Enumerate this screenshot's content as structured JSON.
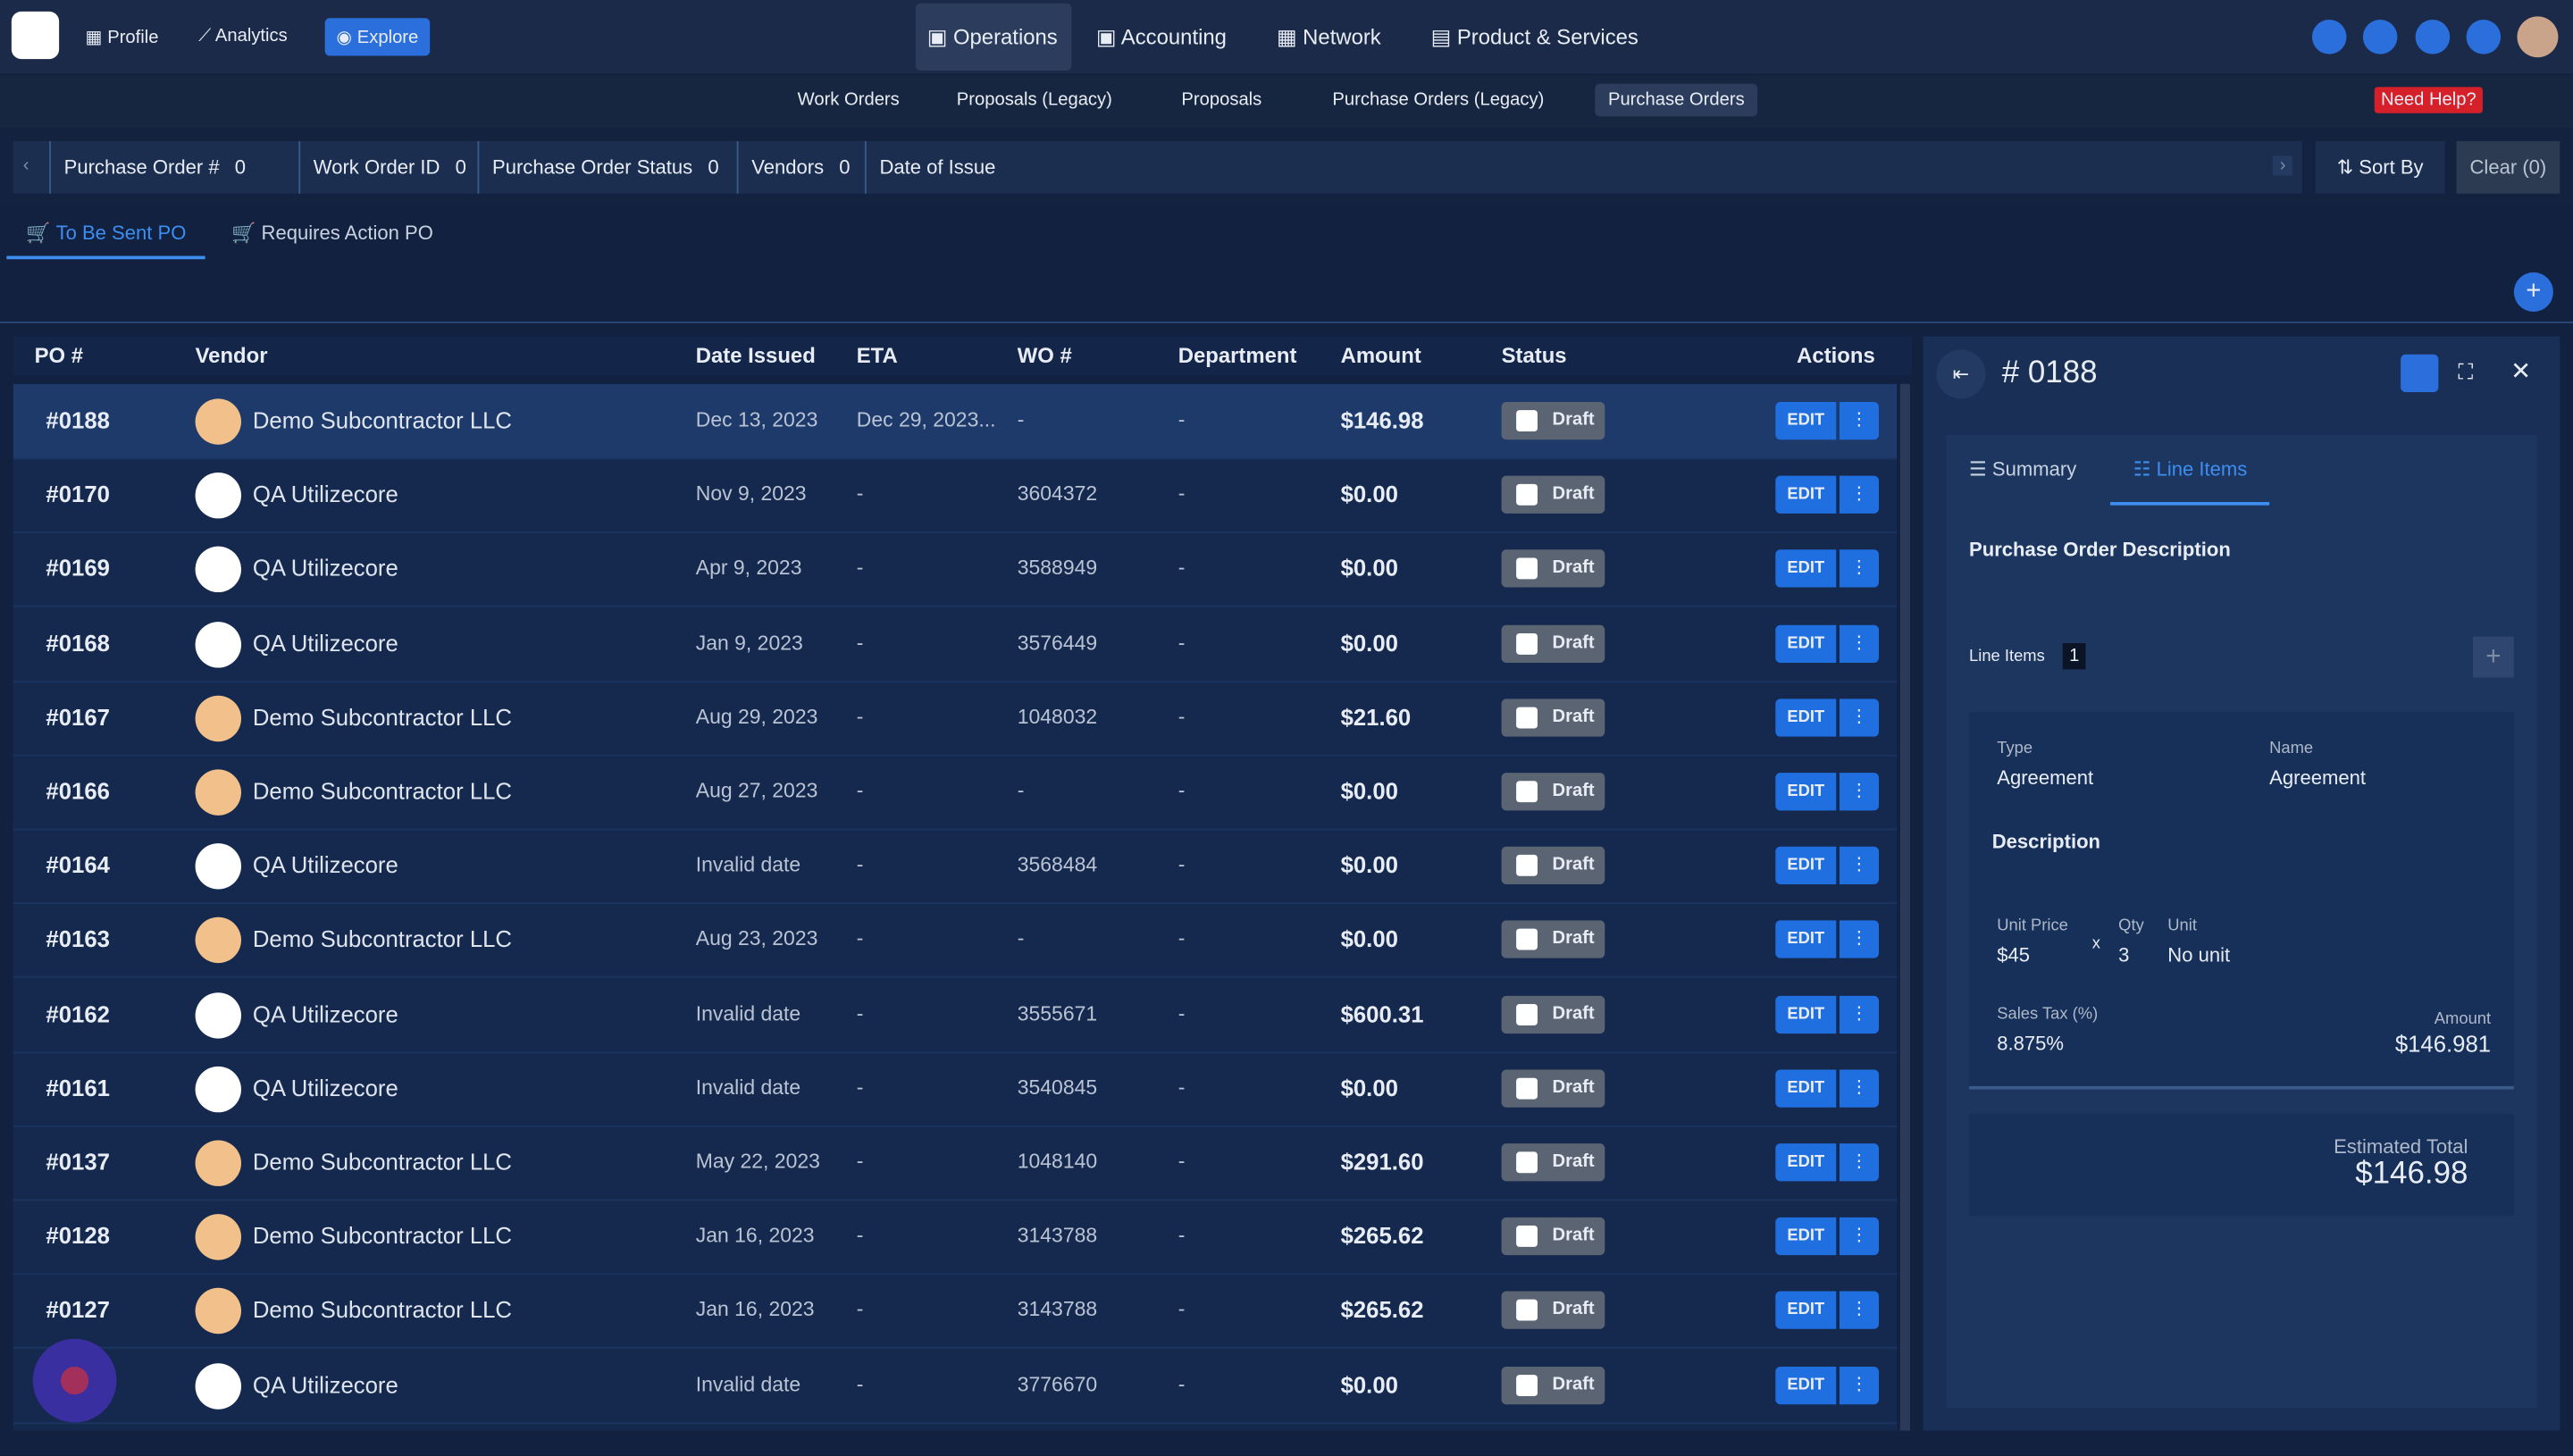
{
  "nav": {
    "left": [
      "Profile",
      "Analytics",
      "Explore"
    ],
    "center": [
      "Operations",
      "Accounting",
      "Network",
      "Product & Services"
    ]
  },
  "subnav": {
    "items": [
      "Work Orders",
      "Proposals (Legacy)",
      "Proposals",
      "Purchase Orders (Legacy)",
      "Purchase Orders"
    ],
    "need_help": "Need Help?"
  },
  "filters": {
    "items": [
      {
        "label": "Purchase Order #",
        "count": 0
      },
      {
        "label": "Work Order ID",
        "count": 0
      },
      {
        "label": "Purchase Order Status",
        "count": 0
      },
      {
        "label": "Vendors",
        "count": 0
      },
      {
        "label": "Date of Issue"
      }
    ],
    "sort": "Sort By",
    "clear": "Clear (0)"
  },
  "tabs": [
    "To Be Sent PO",
    "Requires Action PO"
  ],
  "table": {
    "columns": [
      "PO #",
      "Vendor",
      "Date Issued",
      "ETA",
      "WO #",
      "Department",
      "Amount",
      "Status",
      "Actions"
    ],
    "edit": "EDIT",
    "rows": [
      [
        "#0188",
        "Demo Subcontractor LLC",
        "Dec 13, 2023",
        "Dec 29, 2023...",
        "-",
        "-",
        "$146.98",
        "Draft"
      ],
      [
        "#0170",
        "QA Utilizecore",
        "Nov 9, 2023",
        "-",
        "3604372",
        "-",
        "$0.00",
        "Draft"
      ],
      [
        "#0169",
        "QA Utilizecore",
        "Apr 9, 2023",
        "-",
        "3588949",
        "-",
        "$0.00",
        "Draft"
      ],
      [
        "#0168",
        "QA Utilizecore",
        "Jan 9, 2023",
        "-",
        "3576449",
        "-",
        "$0.00",
        "Draft"
      ],
      [
        "#0167",
        "Demo Subcontractor LLC",
        "Aug 29, 2023",
        "-",
        "1048032",
        "-",
        "$21.60",
        "Draft"
      ],
      [
        "#0166",
        "Demo Subcontractor LLC",
        "Aug 27, 2023",
        "-",
        "-",
        "-",
        "$0.00",
        "Draft"
      ],
      [
        "#0164",
        "QA Utilizecore",
        "Invalid date",
        "-",
        "3568484",
        "-",
        "$0.00",
        "Draft"
      ],
      [
        "#0163",
        "Demo Subcontractor LLC",
        "Aug 23, 2023",
        "-",
        "-",
        "-",
        "$0.00",
        "Draft"
      ],
      [
        "#0162",
        "QA Utilizecore",
        "Invalid date",
        "-",
        "3555671",
        "-",
        "$600.31",
        "Draft"
      ],
      [
        "#0161",
        "QA Utilizecore",
        "Invalid date",
        "-",
        "3540845",
        "-",
        "$0.00",
        "Draft"
      ],
      [
        "#0137",
        "Demo Subcontractor LLC",
        "May 22, 2023",
        "-",
        "1048140",
        "-",
        "$291.60",
        "Draft"
      ],
      [
        "#0128",
        "Demo Subcontractor LLC",
        "Jan 16, 2023",
        "-",
        "3143788",
        "-",
        "$265.62",
        "Draft"
      ],
      [
        "#0127",
        "Demo Subcontractor LLC",
        "Jan 16, 2023",
        "-",
        "3143788",
        "-",
        "$265.62",
        "Draft"
      ],
      [
        null,
        "QA Utilizecore",
        "Invalid date",
        "-",
        "3776670",
        "-",
        "$0.00",
        "Draft"
      ]
    ]
  },
  "panel": {
    "title": "# 0188",
    "tabs": [
      "Summary",
      "Line Items"
    ],
    "description_label": "Purchase Order Description",
    "line_items_label": "Line Items",
    "line_items_count": 1,
    "item": {
      "type_label": "Type",
      "type": "Agreement",
      "name_label": "Name",
      "name": "Agreement",
      "description_label": "Description",
      "unit_price_label": "Unit Price",
      "unit_price": "$45",
      "times": "x",
      "qty_label": "Qty",
      "qty": 3,
      "unit_label": "Unit",
      "unit": "No unit",
      "tax_label": "Sales Tax (%)",
      "tax": "8.875%",
      "amount_label": "Amount",
      "amount": "$146.981"
    },
    "estimated_total_label": "Estimated Total",
    "estimated_total": "$146.98"
  }
}
